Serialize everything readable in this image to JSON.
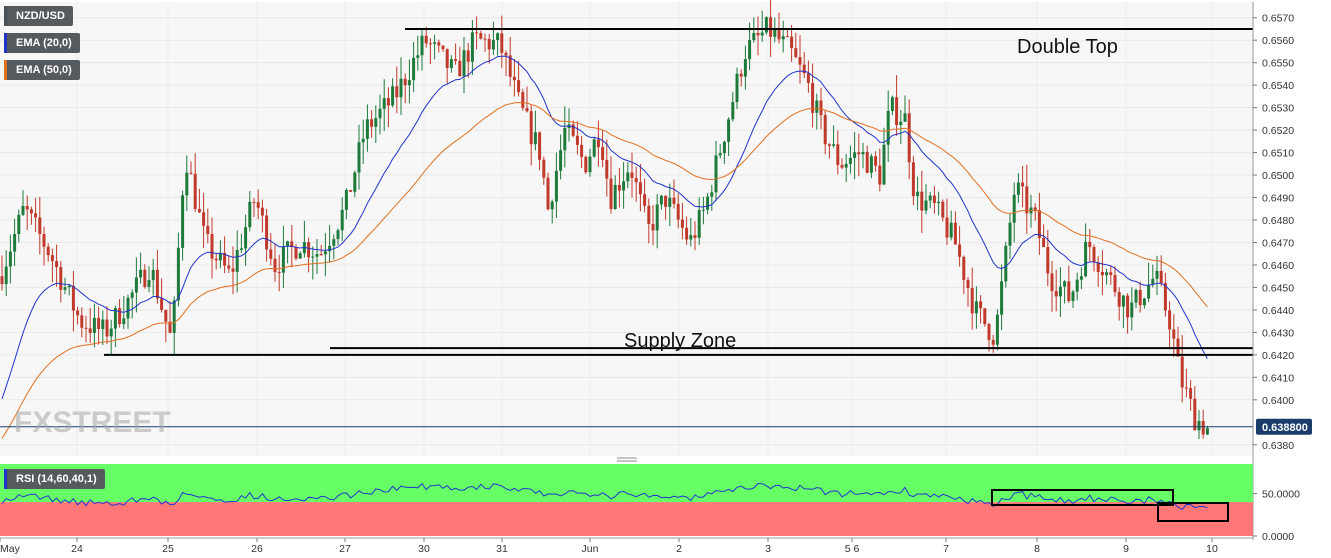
{
  "legend": {
    "symbol": "NZD/USD",
    "ema20": "EMA (20,0)",
    "ema50": "EMA (50,0)",
    "rsi": "RSI (14,60,40,1)"
  },
  "colors": {
    "bull": "#1e7a3a",
    "bear": "#c0392b",
    "ema20": "#2233cc",
    "ema50": "#e07020",
    "rsi_line": "#2233cc",
    "rsi_upper_zone": "#66ff66",
    "rsi_lower_zone": "#ff7777",
    "price_tag": "#1a3d6b"
  },
  "watermark": "FXSTREET",
  "chart_data": [
    {
      "type": "candlestick",
      "title": "NZD/USD",
      "ylim": [
        0.6375,
        0.6577
      ],
      "y_ticks": [
        "0.6570",
        "0.6560",
        "0.6550",
        "0.6540",
        "0.6530",
        "0.6520",
        "0.6510",
        "0.6500",
        "0.6490",
        "0.6480",
        "0.6470",
        "0.6460",
        "0.6450",
        "0.6440",
        "0.6430",
        "0.6420",
        "0.6410",
        "0.6400",
        "0.6380"
      ],
      "x_ticks": [
        "May",
        "24",
        "25",
        "26",
        "27",
        "30",
        "31",
        "Jun",
        "2",
        "3",
        "5 6",
        "7",
        "8",
        "9",
        "10"
      ],
      "last_price": "0.638800",
      "series": [
        {
          "name": "EMA (20,0)"
        },
        {
          "name": "EMA (50,0)"
        }
      ],
      "annotations": [
        {
          "text": "Double Top",
          "y": 0.6565
        },
        {
          "text": "Supply Zone",
          "y": 0.6422
        }
      ],
      "horizontal_levels": [
        0.6565,
        0.6423,
        0.642
      ]
    },
    {
      "type": "line",
      "title": "RSI (14,60,40,1)",
      "ylim": [
        0,
        85
      ],
      "y_ticks": [
        "50.0000",
        "0.0000"
      ],
      "upper_zone": [
        40,
        85
      ],
      "lower_zone": [
        0,
        40
      ]
    }
  ]
}
